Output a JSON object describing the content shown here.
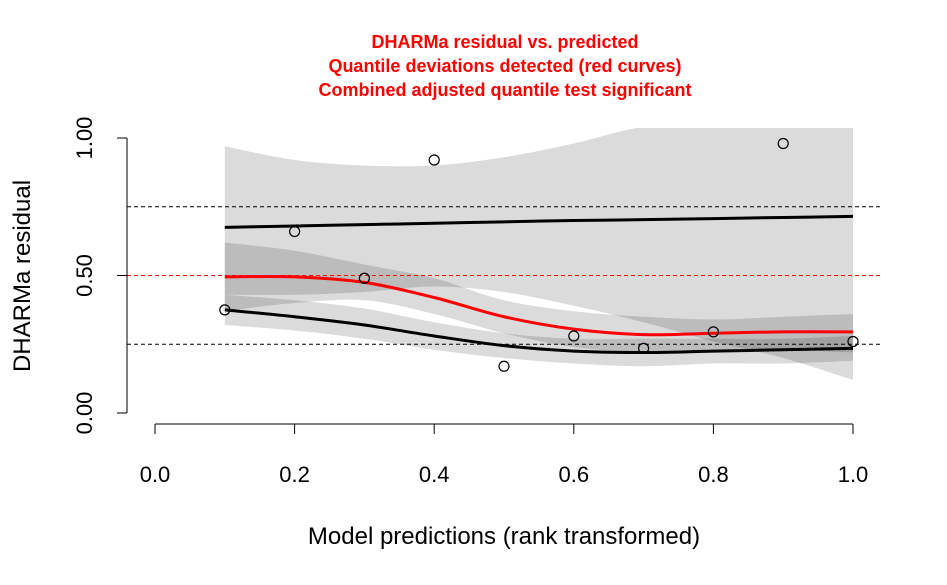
{
  "chart_data": {
    "type": "scatter",
    "title_lines": [
      "DHARMa residual vs. predicted",
      "Quantile deviations detected (red curves)",
      "Combined adjusted quantile test significant"
    ],
    "xlabel": "Model predictions (rank transformed)",
    "ylabel": "DHARMa residual",
    "xlim": [
      0.0,
      1.0
    ],
    "ylim": [
      0.0,
      1.0
    ],
    "x_ticks": [
      "0.0",
      "0.2",
      "0.4",
      "0.6",
      "0.8",
      "1.0"
    ],
    "y_ticks": [
      "0.00",
      "0.50",
      "1.00"
    ],
    "y_tick_values": [
      0.0,
      0.5,
      1.0
    ],
    "x_tick_values": [
      0.0,
      0.2,
      0.4,
      0.6,
      0.8,
      1.0
    ],
    "reference_lines": [
      {
        "y": 0.25,
        "color": "#000000",
        "style": "dashed"
      },
      {
        "y": 0.5,
        "color": "#ff0000",
        "style": "dashed"
      },
      {
        "y": 0.75,
        "color": "#000000",
        "style": "dashed"
      }
    ],
    "points": {
      "x": [
        0.1,
        0.2,
        0.3,
        0.4,
        0.5,
        0.6,
        0.7,
        0.8,
        0.9,
        1.0
      ],
      "y": [
        0.375,
        0.66,
        0.49,
        0.92,
        0.17,
        0.28,
        0.235,
        0.295,
        0.98,
        0.26
      ]
    },
    "quantile_curves": [
      {
        "quantile": 0.75,
        "color": "#000000",
        "x": [
          0.1,
          0.2,
          0.3,
          0.4,
          0.5,
          0.6,
          0.7,
          0.8,
          0.9,
          1.0
        ],
        "y": [
          0.675,
          0.68,
          0.685,
          0.69,
          0.695,
          0.7,
          0.703,
          0.707,
          0.711,
          0.715
        ],
        "band_upper": [
          0.97,
          0.92,
          0.9,
          0.9,
          0.93,
          0.98,
          1.04,
          1.04,
          1.04,
          1.04
        ],
        "band_lower": [
          0.43,
          0.43,
          0.44,
          0.46,
          0.44,
          0.39,
          0.33,
          0.26,
          0.2,
          0.12
        ]
      },
      {
        "quantile": 0.5,
        "color": "#ff0000",
        "x": [
          0.1,
          0.2,
          0.3,
          0.4,
          0.5,
          0.6,
          0.7,
          0.8,
          0.9,
          1.0
        ],
        "y": [
          0.495,
          0.495,
          0.475,
          0.42,
          0.35,
          0.305,
          0.285,
          0.29,
          0.295,
          0.295
        ],
        "band_upper": [
          0.62,
          0.59,
          0.54,
          0.49,
          0.41,
          0.37,
          0.35,
          0.34,
          0.35,
          0.36
        ],
        "band_lower": [
          0.37,
          0.4,
          0.41,
          0.36,
          0.29,
          0.24,
          0.22,
          0.23,
          0.23,
          0.22
        ]
      },
      {
        "quantile": 0.25,
        "color": "#000000",
        "x": [
          0.1,
          0.2,
          0.3,
          0.4,
          0.5,
          0.6,
          0.7,
          0.8,
          0.9,
          1.0
        ],
        "y": [
          0.375,
          0.35,
          0.32,
          0.28,
          0.245,
          0.225,
          0.22,
          0.225,
          0.23,
          0.235
        ],
        "band_upper": [
          0.43,
          0.41,
          0.38,
          0.33,
          0.29,
          0.27,
          0.27,
          0.27,
          0.27,
          0.28
        ],
        "band_lower": [
          0.32,
          0.3,
          0.27,
          0.23,
          0.2,
          0.18,
          0.17,
          0.18,
          0.18,
          0.19
        ]
      }
    ]
  }
}
